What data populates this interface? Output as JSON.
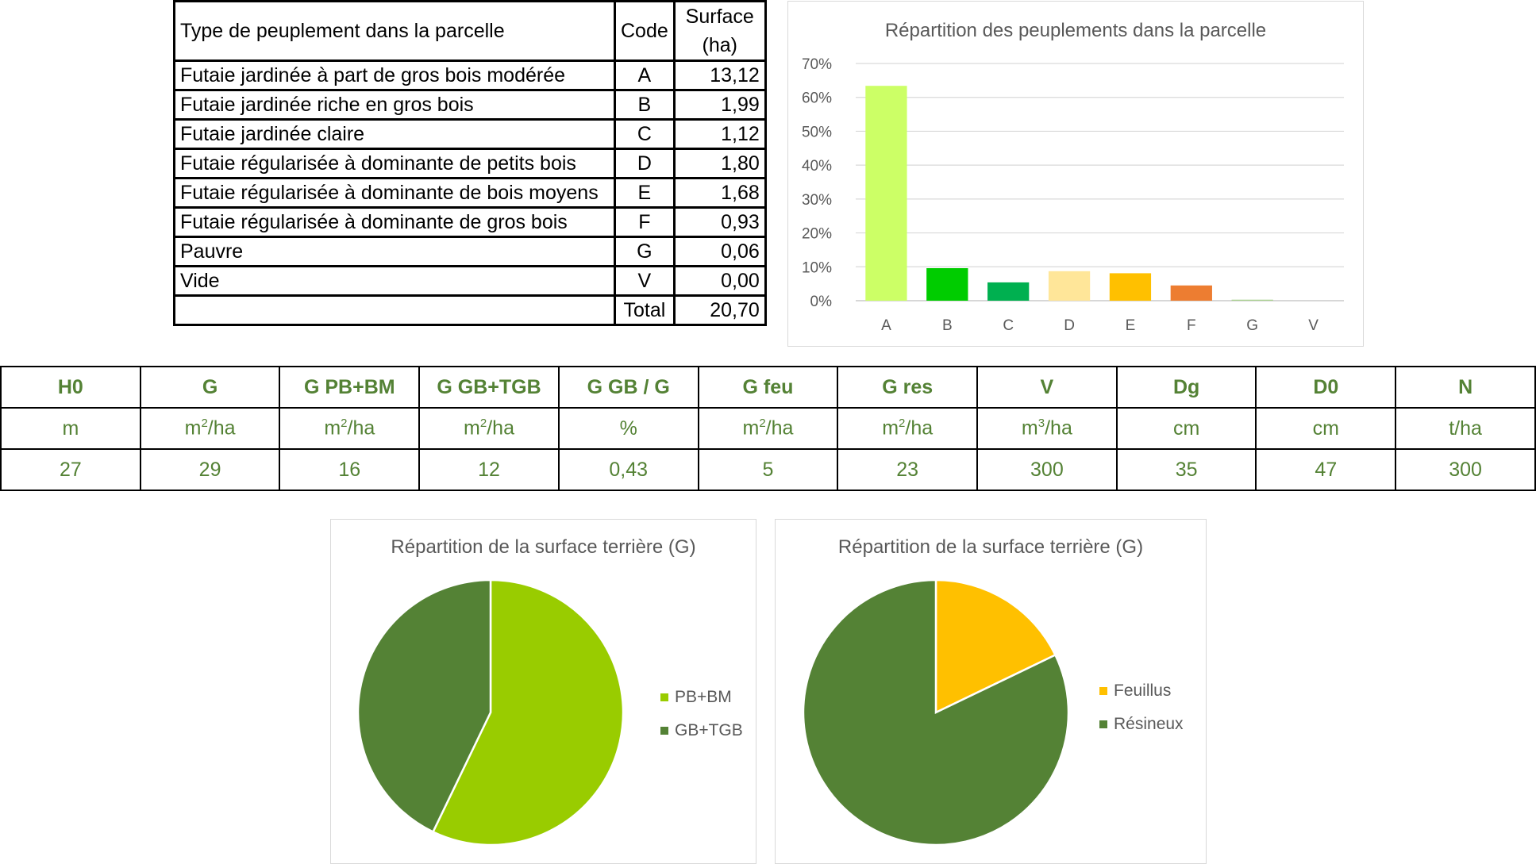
{
  "stand_table": {
    "headers": {
      "type": "Type de peuplement dans la parcelle",
      "code": "Code",
      "surface_line1": "Surface",
      "surface_line2": "(ha)"
    },
    "rows": [
      {
        "type": "Futaie jardinée à part de gros bois modérée",
        "code": "A",
        "surface": "13,12"
      },
      {
        "type": "Futaie jardinée riche en gros bois",
        "code": "B",
        "surface": "1,99"
      },
      {
        "type": "Futaie jardinée claire",
        "code": "C",
        "surface": "1,12"
      },
      {
        "type": "Futaie régularisée à dominante de petits bois",
        "code": "D",
        "surface": "1,80"
      },
      {
        "type": "Futaie régularisée à dominante de bois moyens",
        "code": "E",
        "surface": "1,68"
      },
      {
        "type": "Futaie régularisée à dominante de gros bois",
        "code": "F",
        "surface": "0,93"
      },
      {
        "type": "Pauvre",
        "code": "G",
        "surface": "0,06"
      },
      {
        "type": "Vide",
        "code": "V",
        "surface": "0,00"
      }
    ],
    "total_label": "Total",
    "total_value": "20,70"
  },
  "metrics": {
    "headers": [
      "H0",
      "G",
      "G PB+BM",
      "G GB+TGB",
      "G GB / G",
      "G feu",
      "G res",
      "V",
      "Dg",
      "D0",
      "N"
    ],
    "units": [
      {
        "base": "m",
        "sup": ""
      },
      {
        "base": "m",
        "sup": "2",
        "tail": "/ha"
      },
      {
        "base": "m",
        "sup": "2",
        "tail": "/ha"
      },
      {
        "base": "m",
        "sup": "2",
        "tail": "/ha"
      },
      {
        "base": "%",
        "sup": ""
      },
      {
        "base": "m",
        "sup": "2",
        "tail": "/ha"
      },
      {
        "base": "m",
        "sup": "2",
        "tail": "/ha"
      },
      {
        "base": "m",
        "sup": "3",
        "tail": "/ha"
      },
      {
        "base": "cm",
        "sup": ""
      },
      {
        "base": "cm",
        "sup": ""
      },
      {
        "base": "t/ha",
        "sup": ""
      }
    ],
    "values": [
      "27",
      "29",
      "16",
      "12",
      "0,43",
      "5",
      "23",
      "300",
      "35",
      "47",
      "300"
    ]
  },
  "chart_data": [
    {
      "type": "bar",
      "title": "Répartition des peuplements dans la parcelle",
      "categories": [
        "A",
        "B",
        "C",
        "D",
        "E",
        "F",
        "G",
        "V"
      ],
      "values": [
        0.634,
        0.096,
        0.054,
        0.087,
        0.081,
        0.045,
        0.003,
        0.0
      ],
      "colors": [
        "#ccff66",
        "#00cc00",
        "#00b050",
        "#ffe699",
        "#ffc000",
        "#ed7d31",
        "#a9d18e",
        "#d9d9d9"
      ],
      "ylim": [
        0,
        0.7
      ],
      "yticks": [
        "0%",
        "10%",
        "20%",
        "30%",
        "40%",
        "50%",
        "60%",
        "70%"
      ]
    },
    {
      "type": "pie",
      "title": "Répartition de la surface terrière (G)",
      "labels": [
        "PB+BM",
        "GB+TGB"
      ],
      "values": [
        16,
        12
      ],
      "colors": [
        "#99cc00",
        "#548235"
      ]
    },
    {
      "type": "pie",
      "title": "Répartition de la surface terrière (G)",
      "labels": [
        "Feuillus",
        "Résineux"
      ],
      "values": [
        5,
        23
      ],
      "colors": [
        "#ffc000",
        "#548235"
      ]
    }
  ]
}
